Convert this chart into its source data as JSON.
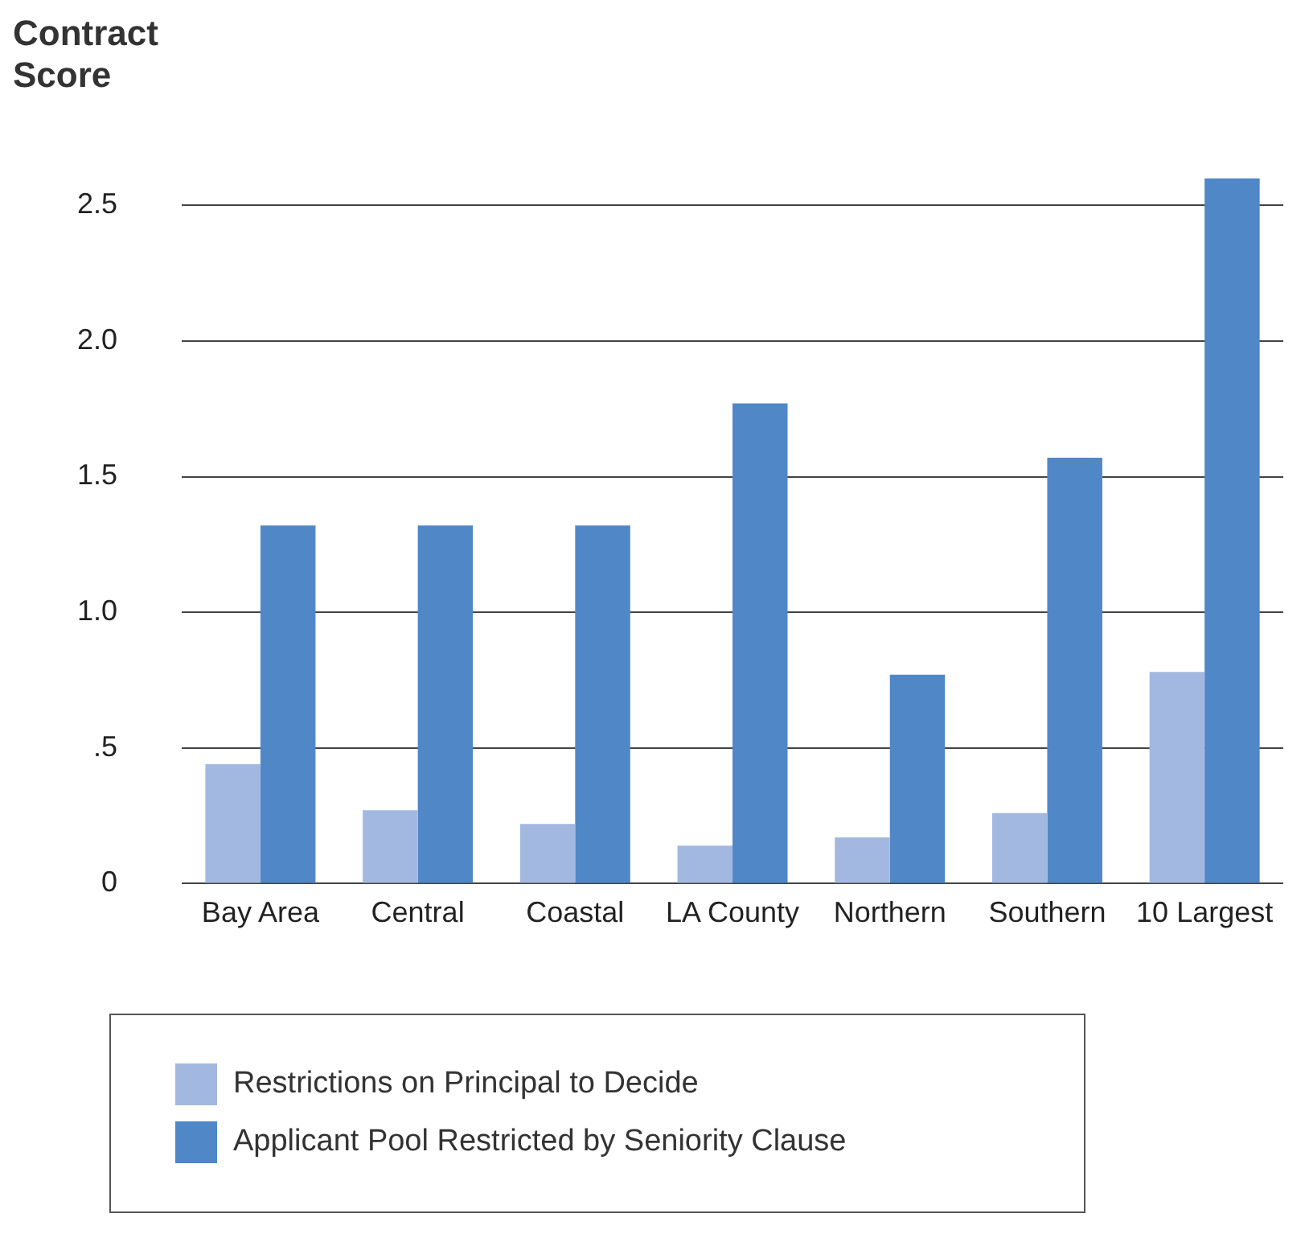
{
  "chart_data": {
    "type": "bar",
    "ylabel": "Contract Score",
    "categories": [
      "Bay Area",
      "Central",
      "Coastal",
      "LA County",
      "Northern",
      "Southern",
      "10 Largest"
    ],
    "series": [
      {
        "name": "Restrictions on Principal to Decide",
        "color": "#a3b8e0",
        "values": [
          0.44,
          0.27,
          0.22,
          0.14,
          0.17,
          0.26,
          0.78
        ]
      },
      {
        "name": "Applicant Pool Restricted by Seniority Clause",
        "color": "#5087c7",
        "values": [
          1.32,
          1.32,
          1.32,
          1.77,
          0.77,
          1.57,
          2.6
        ]
      }
    ],
    "ylim": [
      0,
      2.6
    ],
    "yticks": [
      {
        "value": 0,
        "label": "0"
      },
      {
        "value": 0.5,
        "label": ".5"
      },
      {
        "value": 1,
        "label": "1.0"
      },
      {
        "value": 1.5,
        "label": "1.5"
      },
      {
        "value": 2,
        "label": "2.0"
      },
      {
        "value": 2.5,
        "label": "2.5"
      }
    ],
    "grid": "y",
    "legend": "bottom"
  }
}
